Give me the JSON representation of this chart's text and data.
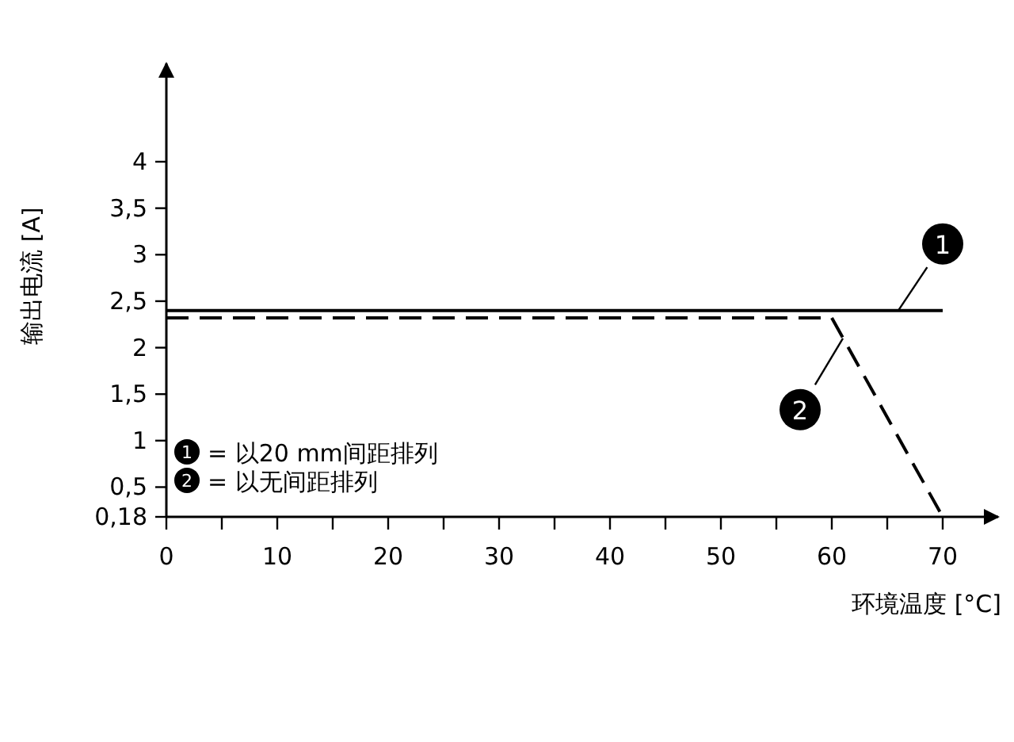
{
  "chart_data": {
    "type": "line",
    "xlabel": "环境温度 [°C]",
    "ylabel": "输出电流 [A]",
    "xlim": [
      0,
      70
    ],
    "ylim": [
      0.18,
      4
    ],
    "xticks": [
      0,
      10,
      20,
      30,
      40,
      50,
      60,
      70
    ],
    "yticks": [
      {
        "value": 0.18,
        "label": "0,18"
      },
      {
        "value": 0.5,
        "label": "0,5"
      },
      {
        "value": 1,
        "label": "1"
      },
      {
        "value": 1.5,
        "label": "1,5"
      },
      {
        "value": 2,
        "label": "2"
      },
      {
        "value": 2.5,
        "label": "2,5"
      },
      {
        "value": 3,
        "label": "3"
      },
      {
        "value": 3.5,
        "label": "3,5"
      },
      {
        "value": 4,
        "label": "4"
      }
    ],
    "series": [
      {
        "name": "= 以20 mm间距排列",
        "color": "#000000",
        "line_style": "solid",
        "x": [
          0,
          70
        ],
        "values": [
          2.4,
          2.4
        ]
      },
      {
        "name": "= 以无间距排列",
        "color": "#000000",
        "line_style": "dashed",
        "x": [
          0,
          60,
          70
        ],
        "values": [
          2.32,
          2.32,
          0.18
        ]
      }
    ],
    "annotations": [
      {
        "text": "1",
        "x": 66,
        "y": 2.4
      },
      {
        "text": "2",
        "x": 61,
        "y": 2.1
      }
    ],
    "legend": "bottom left",
    "grid": false,
    "marker": "none"
  }
}
